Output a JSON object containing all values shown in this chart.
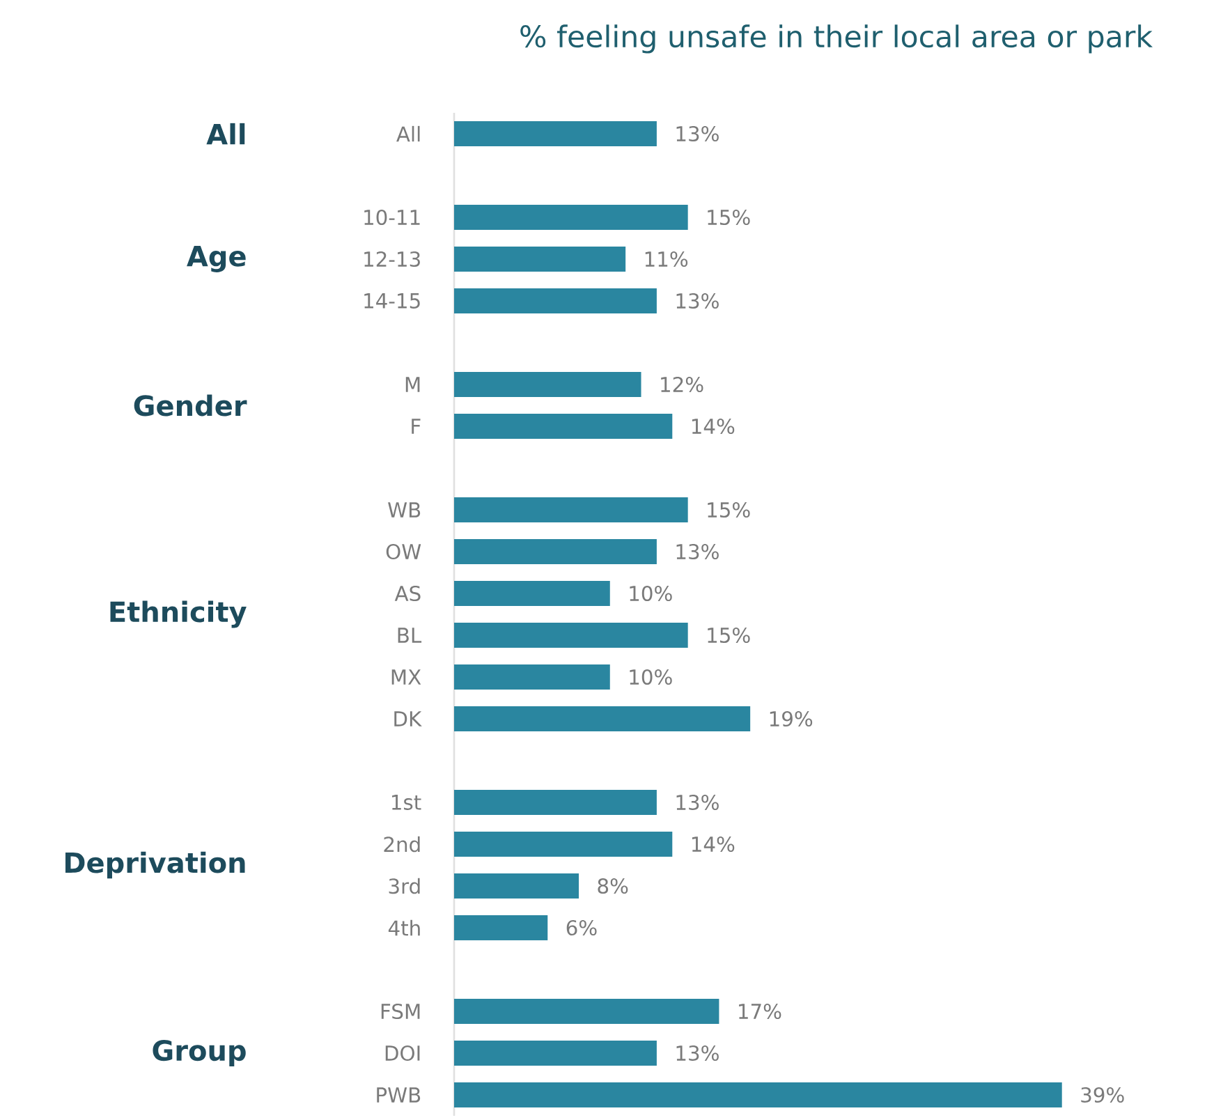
{
  "chart_data": {
    "type": "bar",
    "orientation": "horizontal",
    "title": "% feeling unsafe in their local area or park",
    "color": "#2a86a0",
    "categories": [
      "All",
      null,
      "10-11",
      "12-13",
      "14-15",
      null,
      "M",
      "F",
      null,
      "WB",
      "OW",
      "AS",
      "BL",
      "MX",
      "DK",
      null,
      "1st",
      "2nd",
      "3rd",
      "4th",
      null,
      "FSM",
      "DOI",
      "PWB"
    ],
    "values": [
      13,
      null,
      15,
      11,
      13,
      null,
      12,
      14,
      null,
      15,
      13,
      10,
      15,
      10,
      19,
      null,
      13,
      14,
      8,
      6,
      null,
      17,
      13,
      39
    ],
    "value_labels": [
      "13%",
      null,
      "15%",
      "11%",
      "13%",
      null,
      "12%",
      "14%",
      null,
      "15%",
      "13%",
      "10%",
      "15%",
      "10%",
      "19%",
      null,
      "13%",
      "14%",
      "8%",
      "6%",
      null,
      "17%",
      "13%",
      "39%"
    ],
    "annotations": [
      "All",
      "Age",
      "Gender",
      "Ethnicity",
      "Deprivation",
      "Group"
    ]
  }
}
